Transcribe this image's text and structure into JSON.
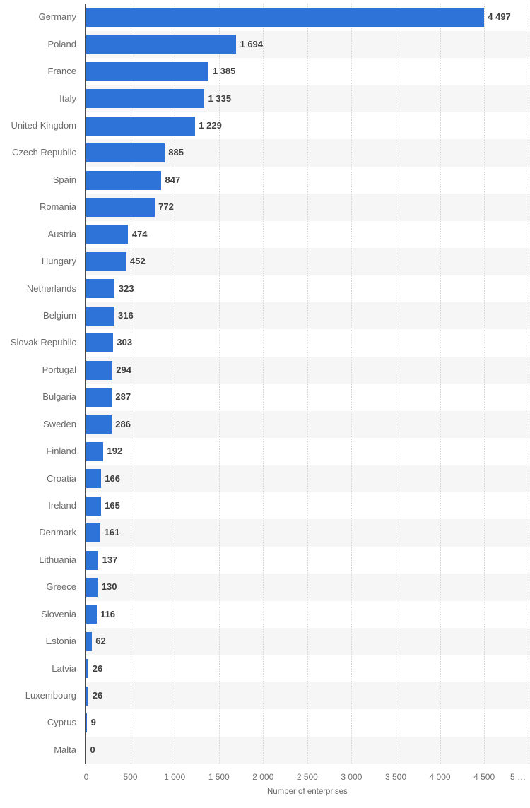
{
  "chart_data": {
    "type": "bar",
    "orientation": "horizontal",
    "title": "",
    "xlabel": "Number of enterprises",
    "ylabel": "",
    "categories": [
      "Germany",
      "Poland",
      "France",
      "Italy",
      "United Kingdom",
      "Czech Republic",
      "Spain",
      "Romania",
      "Austria",
      "Hungary",
      "Netherlands",
      "Belgium",
      "Slovak Republic",
      "Portugal",
      "Bulgaria",
      "Sweden",
      "Finland",
      "Croatia",
      "Ireland",
      "Denmark",
      "Lithuania",
      "Greece",
      "Slovenia",
      "Estonia",
      "Latvia",
      "Luxembourg",
      "Cyprus",
      "Malta"
    ],
    "values": [
      4497,
      1694,
      1385,
      1335,
      1229,
      885,
      847,
      772,
      474,
      452,
      323,
      316,
      303,
      294,
      287,
      286,
      192,
      166,
      165,
      161,
      137,
      130,
      116,
      62,
      26,
      26,
      9,
      0
    ],
    "value_labels": [
      "4 497",
      "1 694",
      "1 385",
      "1 335",
      "1 229",
      "885",
      "847",
      "772",
      "474",
      "452",
      "323",
      "316",
      "303",
      "294",
      "287",
      "286",
      "192",
      "166",
      "165",
      "161",
      "137",
      "130",
      "116",
      "62",
      "26",
      "26",
      "9",
      "0"
    ],
    "xlim": [
      0,
      5000
    ],
    "xticks": [
      0,
      500,
      1000,
      1500,
      2000,
      2500,
      3000,
      3500,
      4000,
      4500,
      5000
    ],
    "xtick_labels": [
      "0",
      "500",
      "1 000",
      "1 500",
      "2 000",
      "2 500",
      "3 000",
      "3 500",
      "4 000",
      "4 500",
      "5 …"
    ],
    "grid": "vertical-dotted",
    "legend": "none",
    "row_striping": "alternate"
  },
  "colors": {
    "bar": "#2d73d8",
    "stripe": "#f6f6f6",
    "gridline": "#d0d0d0",
    "axis_line": "#4a4a4a",
    "category_label": "#6b6b6b",
    "value_label": "#404040",
    "tick_label": "#707070",
    "axis_title": "#666666",
    "background": "#ffffff"
  }
}
